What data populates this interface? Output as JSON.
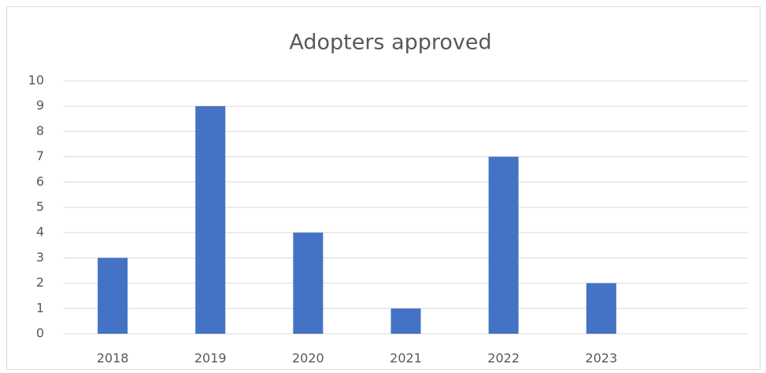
{
  "chart_data": {
    "type": "bar",
    "title": "Adopters approved",
    "categories": [
      "2018",
      "2019",
      "2020",
      "2021",
      "2022",
      "2023",
      null
    ],
    "values": [
      3,
      9,
      4,
      1,
      7,
      2,
      null
    ],
    "color": "#4472c4",
    "ylim": [
      0,
      10
    ],
    "yticks": [
      0,
      1,
      2,
      3,
      4,
      5,
      6,
      7,
      8,
      9,
      10
    ],
    "grid": true
  }
}
